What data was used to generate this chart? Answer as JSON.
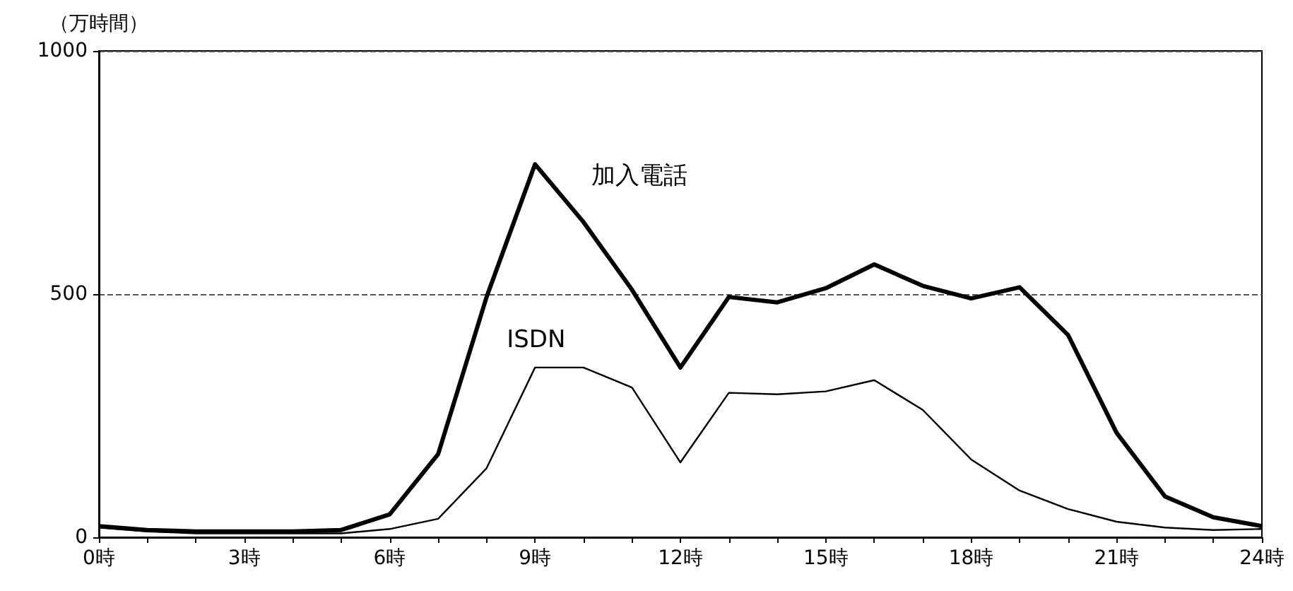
{
  "chart_data": {
    "type": "line",
    "ylabel": "（万時間）",
    "x": [
      0,
      1,
      2,
      3,
      4,
      5,
      6,
      7,
      8,
      9,
      10,
      11,
      12,
      13,
      14,
      15,
      16,
      17,
      18,
      19,
      20,
      21,
      22,
      23,
      24
    ],
    "series": [
      {
        "name": "加入電話",
        "color": "#000000",
        "values": [
          23,
          15,
          12,
          12,
          12,
          15,
          47,
          171,
          494,
          767,
          648,
          509,
          349,
          494,
          483,
          512,
          561,
          517,
          491,
          514,
          416,
          215,
          84,
          41,
          23
        ]
      },
      {
        "name": "ISDN",
        "color": "#000000",
        "values": [
          20,
          12,
          8,
          8,
          8,
          8,
          17,
          38,
          142,
          349,
          349,
          308,
          154,
          297,
          294,
          300,
          323,
          262,
          160,
          96,
          58,
          32,
          20,
          15,
          17
        ]
      }
    ],
    "xlim": [
      0,
      24
    ],
    "xticks": [
      {
        "value": 0,
        "label": "0時"
      },
      {
        "value": 1,
        "label": null
      },
      {
        "value": 2,
        "label": null
      },
      {
        "value": 3,
        "label": "3時"
      },
      {
        "value": 4,
        "label": null
      },
      {
        "value": 5,
        "label": null
      },
      {
        "value": 6,
        "label": "6時"
      },
      {
        "value": 7,
        "label": null
      },
      {
        "value": 8,
        "label": null
      },
      {
        "value": 9,
        "label": "9時"
      },
      {
        "value": 10,
        "label": null
      },
      {
        "value": 11,
        "label": null
      },
      {
        "value": 12,
        "label": "12時"
      },
      {
        "value": 13,
        "label": null
      },
      {
        "value": 14,
        "label": null
      },
      {
        "value": 15,
        "label": "15時"
      },
      {
        "value": 16,
        "label": null
      },
      {
        "value": 17,
        "label": null
      },
      {
        "value": 18,
        "label": "18時"
      },
      {
        "value": 19,
        "label": null
      },
      {
        "value": 20,
        "label": null
      },
      {
        "value": 21,
        "label": "21時"
      },
      {
        "value": 22,
        "label": null
      },
      {
        "value": 23,
        "label": null
      },
      {
        "value": 24,
        "label": "24時"
      }
    ],
    "ylim": [
      0,
      1000
    ],
    "yticks": [
      0,
      500,
      1000
    ],
    "grid": "y",
    "line_style": "solid",
    "marker": "none"
  }
}
